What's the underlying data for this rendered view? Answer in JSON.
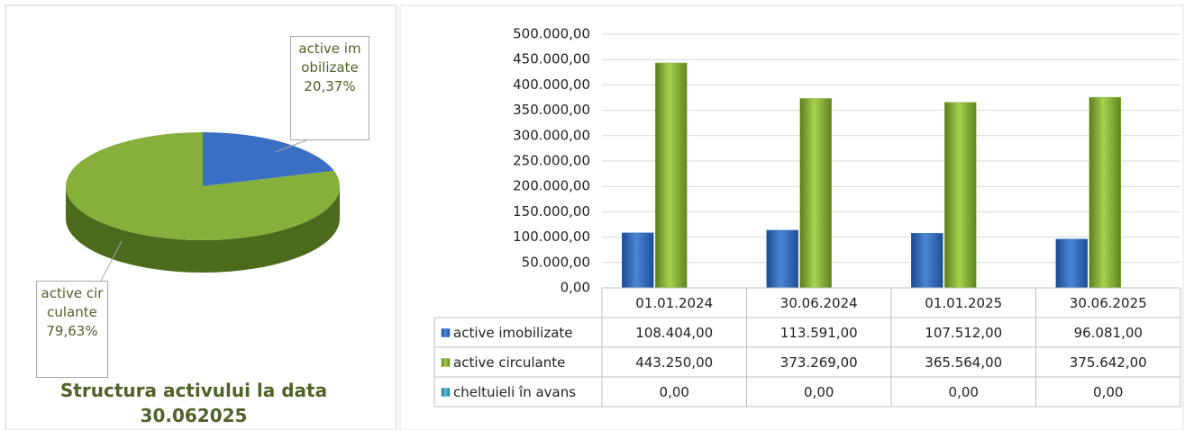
{
  "chart_data": [
    {
      "type": "pie",
      "title": "Structura activului la data 30.062025",
      "categories": [
        "active imobilizate",
        "active circulante"
      ],
      "values": [
        20.37,
        79.63
      ],
      "value_labels": [
        "20,37%",
        "79,63%"
      ],
      "colors": [
        "#3a6fc4",
        "#86b03b"
      ],
      "side_colors": [
        "#24497f",
        "#4c6a1c"
      ]
    },
    {
      "type": "bar",
      "categories": [
        "01.01.2024",
        "30.06.2024",
        "01.01.2025",
        "30.06.2025"
      ],
      "series": [
        {
          "name": "active imobilizate",
          "color": "#2f6cc0",
          "values": [
            108404,
            113591,
            107512,
            96081
          ],
          "value_labels": [
            "108.404,00",
            "113.591,00",
            "107.512,00",
            "96.081,00"
          ]
        },
        {
          "name": "active circulante",
          "color": "#86b43a",
          "values": [
            443250,
            373269,
            365564,
            375642
          ],
          "value_labels": [
            "443.250,00",
            "373.269,00",
            "365.564,00",
            "375.642,00"
          ]
        },
        {
          "name": "cheltuieli în avans",
          "color": "#37a6c4",
          "values": [
            0,
            0,
            0,
            0
          ],
          "value_labels": [
            "0,00",
            "0,00",
            "0,00",
            "0,00"
          ]
        }
      ],
      "ylim": [
        0,
        500000
      ],
      "yticks": [
        {
          "value": 0,
          "label": "0,00"
        },
        {
          "value": 50000,
          "label": "50.000,00"
        },
        {
          "value": 100000,
          "label": "100.000,00"
        },
        {
          "value": 150000,
          "label": "150.000,00"
        },
        {
          "value": 200000,
          "label": "200.000,00"
        },
        {
          "value": 250000,
          "label": "250.000,00"
        },
        {
          "value": 300000,
          "label": "300.000,00"
        },
        {
          "value": 350000,
          "label": "350.000,00"
        },
        {
          "value": 400000,
          "label": "400.000,00"
        },
        {
          "value": 450000,
          "label": "450.000,00"
        },
        {
          "value": 500000,
          "label": "500.000,00"
        }
      ],
      "grid": true
    }
  ]
}
